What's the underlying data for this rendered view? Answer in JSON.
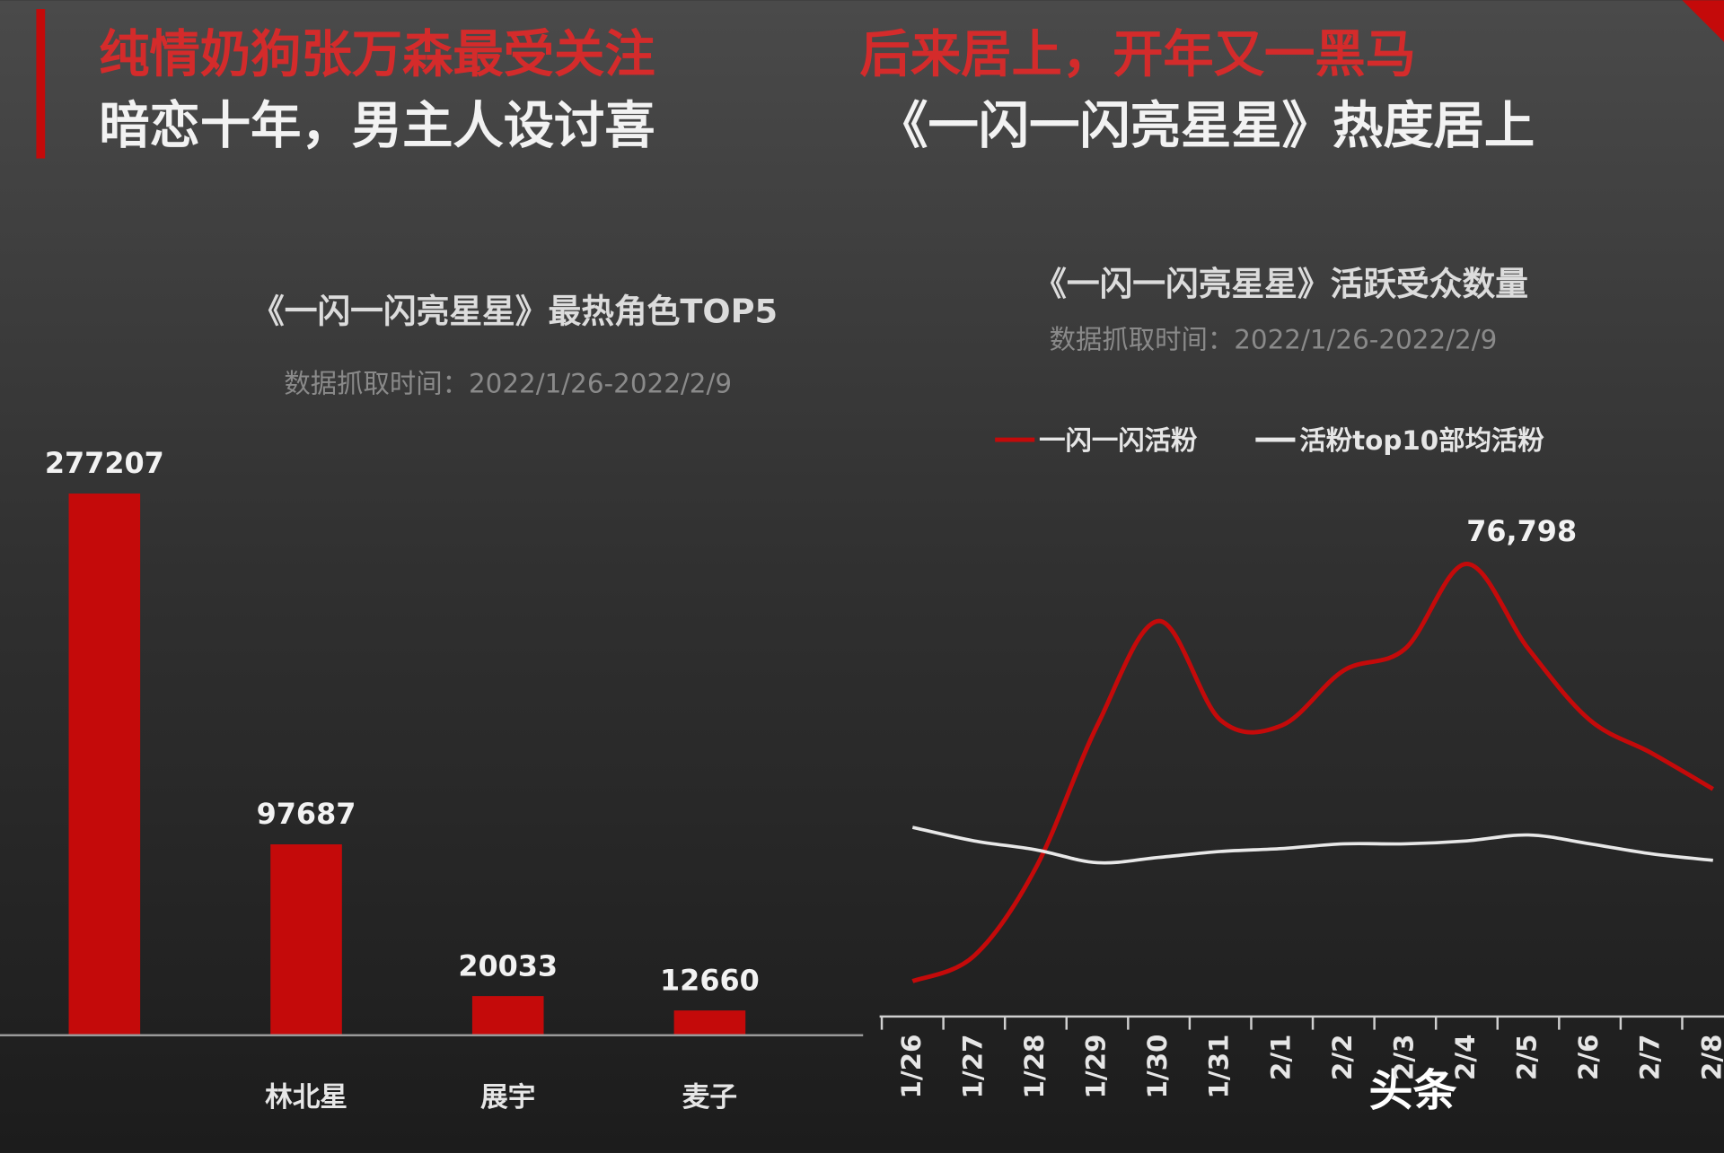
{
  "headlines": {
    "left": {
      "accent": "纯情奶狗张万森最受关注",
      "main": "暗恋十年，男主人设讨喜"
    },
    "right": {
      "accent": "后来居上，开年又一黑马",
      "main": "《一闪一闪亮星星》热度居上"
    }
  },
  "watermark": "头条",
  "chart_data": [
    {
      "type": "bar",
      "title": "《一闪一闪亮星星》最热角色TOP5",
      "subtitle": "数据抓取时间：2022/1/26-2022/2/9",
      "categories": [
        null,
        "林北星",
        "展宇",
        "麦子"
      ],
      "values": [
        277207,
        97687,
        20033,
        12660
      ],
      "color": "#c40a0a"
    },
    {
      "type": "line",
      "title": "《一闪一闪亮星星》活跃受众数量",
      "subtitle": "数据抓取时间：2022/1/26-2022/2/9",
      "categories": [
        "1/26",
        "1/27",
        "1/28",
        "1/29",
        "1/30",
        "1/31",
        "2/1",
        "2/2",
        "2/3",
        "2/4",
        "2/5",
        "2/6",
        "2/7",
        "2/8"
      ],
      "series": [
        {
          "name": "一闪一闪活粉",
          "color": "#c40a0a",
          "values": [
            6000,
            10300,
            25200,
            49400,
            67100,
            50300,
            49400,
            58700,
            62400,
            76798,
            62400,
            50300,
            44700,
            38600
          ],
          "value_labels": [
            null,
            null,
            null,
            null,
            null,
            null,
            null,
            null,
            null,
            "76,798",
            null,
            null,
            null,
            null
          ]
        },
        {
          "name": "活粉top10部均活粉",
          "color": "#e8e8e8",
          "values": [
            32100,
            29800,
            28300,
            26100,
            27000,
            28000,
            28500,
            29300,
            29300,
            29800,
            30800,
            29300,
            27600,
            26500
          ]
        }
      ],
      "legend": "top"
    }
  ]
}
